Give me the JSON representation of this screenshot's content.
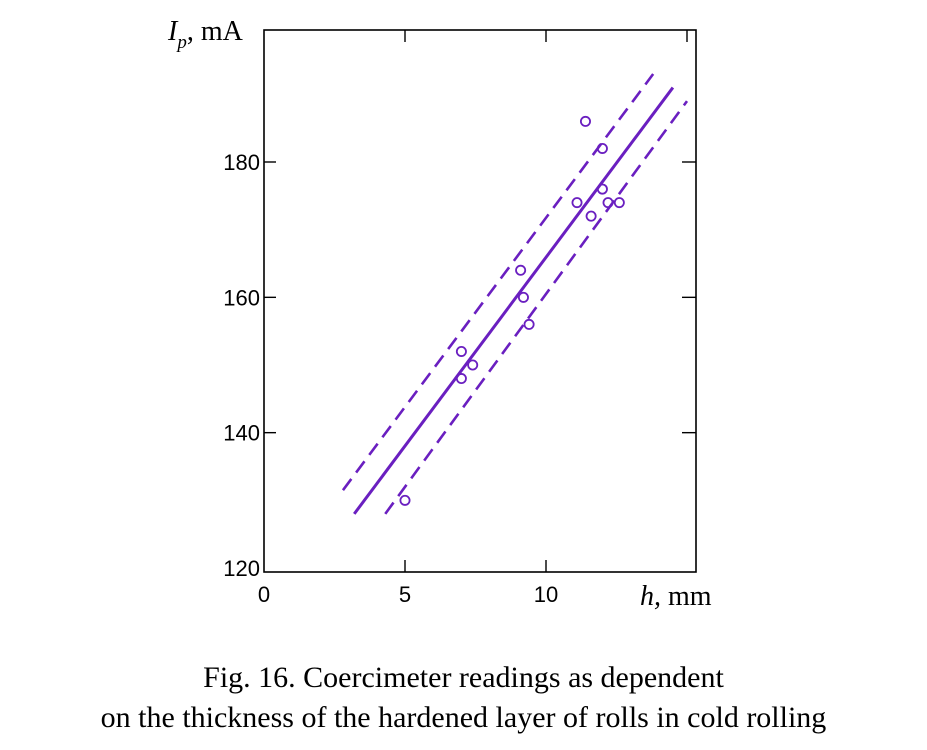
{
  "chart_data": {
    "type": "scatter",
    "title": "",
    "xlabel": "h, mm",
    "ylabel": "Ip, mA",
    "xlabel_parts": {
      "symbol": "h,",
      "unit": " mm"
    },
    "ylabel_parts": {
      "symbol": "I",
      "subscript": "p",
      "unit": ", mA"
    },
    "xlim": [
      0,
      15
    ],
    "ylim": [
      120,
      200
    ],
    "x_ticks": [
      0,
      5,
      10
    ],
    "y_ticks": [
      120,
      140,
      160,
      180
    ],
    "grid": false,
    "color": "#6A1FC0",
    "series": [
      {
        "kind": "points",
        "x": [
          5.0,
          7.0,
          7.0,
          7.4,
          9.1,
          9.2,
          9.4,
          11.1,
          11.4,
          11.6,
          12.0,
          12.0,
          12.2,
          12.6
        ],
        "y": [
          130,
          152,
          148,
          150,
          164,
          160,
          156,
          174,
          186,
          172,
          182,
          176,
          174,
          174
        ]
      },
      {
        "kind": "fit-line",
        "style": "solid",
        "x": [
          3.2,
          14.5
        ],
        "y": [
          128,
          191
        ]
      },
      {
        "kind": "band-upper",
        "style": "dashed",
        "x": [
          2.8,
          13.8
        ],
        "y": [
          131.5,
          193
        ]
      },
      {
        "kind": "band-lower",
        "style": "dashed",
        "x": [
          4.3,
          15.0
        ],
        "y": [
          128,
          189
        ]
      }
    ]
  },
  "caption": {
    "line1": "Fig. 16. Coercimeter readings as dependent",
    "line2": "on the thickness of the hardened layer of rolls in cold rolling"
  }
}
